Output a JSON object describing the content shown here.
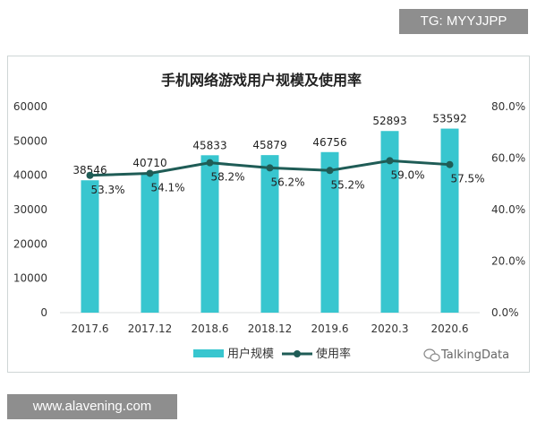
{
  "watermark_top": "TG: MYYJJPP",
  "watermark_bottom": "www.alavening.com",
  "source_logo": "TalkingData",
  "colors": {
    "bar": "#38c6cf",
    "line": "#1f5c56",
    "grid": "#d9dddd",
    "text": "#333333"
  },
  "chart_data": {
    "type": "bar",
    "title": "手机网络游戏用户规模及使用率",
    "categories": [
      "2017.6",
      "2017.12",
      "2018.6",
      "2018.12",
      "2019.6",
      "2020.3",
      "2020.6"
    ],
    "series": [
      {
        "name": "用户规模",
        "type": "bar",
        "axis": "left",
        "values": [
          38546,
          40710,
          45833,
          45879,
          46756,
          52893,
          53592
        ]
      },
      {
        "name": "使用率",
        "type": "line",
        "axis": "right",
        "values": [
          53.3,
          54.1,
          58.2,
          56.2,
          55.2,
          59.0,
          57.5
        ]
      }
    ],
    "bar_labels": [
      "38546",
      "40710",
      "45833",
      "45879",
      "46756",
      "52893",
      "53592"
    ],
    "line_labels": [
      "53.3%",
      "54.1%",
      "58.2%",
      "56.2%",
      "55.2%",
      "59.0%",
      "57.5%"
    ],
    "y_left": {
      "lim": [
        0,
        60000
      ],
      "ticks": [
        "0",
        "10000",
        "20000",
        "30000",
        "40000",
        "50000",
        "60000"
      ]
    },
    "y_right": {
      "lim": [
        0,
        80
      ],
      "ticks": [
        "0.0%",
        "20.0%",
        "40.0%",
        "60.0%",
        "80.0%"
      ]
    },
    "legend": {
      "position": "bottom",
      "entries": [
        "用户规模",
        "使用率"
      ]
    },
    "grid": false
  }
}
